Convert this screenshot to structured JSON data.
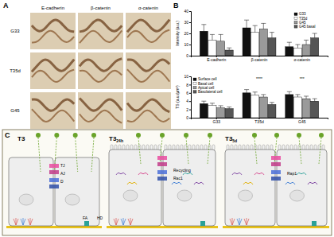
{
  "panel_a": {
    "label": "A",
    "columns": [
      "E-cadherin",
      "β-catenin",
      "α-catenin"
    ],
    "rows": [
      "G33",
      "T35d",
      "G45"
    ]
  },
  "panel_b": {
    "label": "B"
  },
  "chart_data": [
    {
      "type": "bar",
      "y_label": "Intensity (a.u.)",
      "categories": [
        "E-cadherin",
        "β-catenin",
        "α-catenin"
      ],
      "series": [
        {
          "name": "G33",
          "color": "#111111",
          "values": [
            22,
            25,
            8
          ],
          "errors": [
            6,
            7,
            4
          ]
        },
        {
          "name": "T35d",
          "color": "#ffffff",
          "values": [
            14,
            21,
            7
          ],
          "errors": [
            5,
            6,
            3
          ]
        },
        {
          "name": "G45",
          "color": "#9a9a9a",
          "values": [
            13,
            24,
            10
          ],
          "errors": [
            6,
            5,
            4
          ]
        },
        {
          "name": "G45 basal",
          "color": "#555555",
          "values": [
            5,
            16,
            16
          ],
          "errors": [
            2,
            5,
            4
          ]
        }
      ],
      "ylim": [
        0,
        40
      ],
      "yticks": [
        0,
        10,
        20,
        30,
        40
      ],
      "legend": "top-right"
    },
    {
      "type": "bar",
      "y_label": "TS (a.u./μm²)",
      "categories": [
        "G33",
        "T35d",
        "G45"
      ],
      "series": [
        {
          "name": "Surface cell",
          "color": "#111111",
          "values": [
            3.4,
            6.0,
            5.6
          ],
          "errors": [
            0.6,
            0.8,
            0.7
          ]
        },
        {
          "name": "Basal cell",
          "color": "#ffffff",
          "values": [
            3.0,
            5.5,
            5.0
          ],
          "errors": [
            0.5,
            0.7,
            0.6
          ]
        },
        {
          "name": "Apical cell",
          "color": "#9a9a9a",
          "values": [
            2.4,
            5.0,
            4.6
          ],
          "errors": [
            0.5,
            0.6,
            0.6
          ]
        },
        {
          "name": "Basolateral cell",
          "color": "#555555",
          "values": [
            2.2,
            3.2,
            4.0
          ],
          "errors": [
            0.4,
            0.5,
            0.6
          ]
        }
      ],
      "ylim": [
        0,
        10
      ],
      "yticks": [
        0,
        2,
        4,
        6,
        8,
        10
      ],
      "legend": "top-left",
      "annotations": [
        {
          "text": "****",
          "category": "T35d"
        },
        {
          "text": "***",
          "category": "G45"
        }
      ]
    }
  ],
  "panel_c": {
    "label": "C",
    "stages": [
      {
        "title": "T3",
        "labels": [
          "TJ",
          "AJ",
          "D",
          "FA",
          "HD"
        ]
      },
      {
        "title": "T3",
        "subscript": "24h",
        "labels": [
          "Recycling",
          "Rac1"
        ]
      },
      {
        "title": "T3",
        "subscript": "5d",
        "labels": [
          "Rap1"
        ]
      }
    ]
  }
}
